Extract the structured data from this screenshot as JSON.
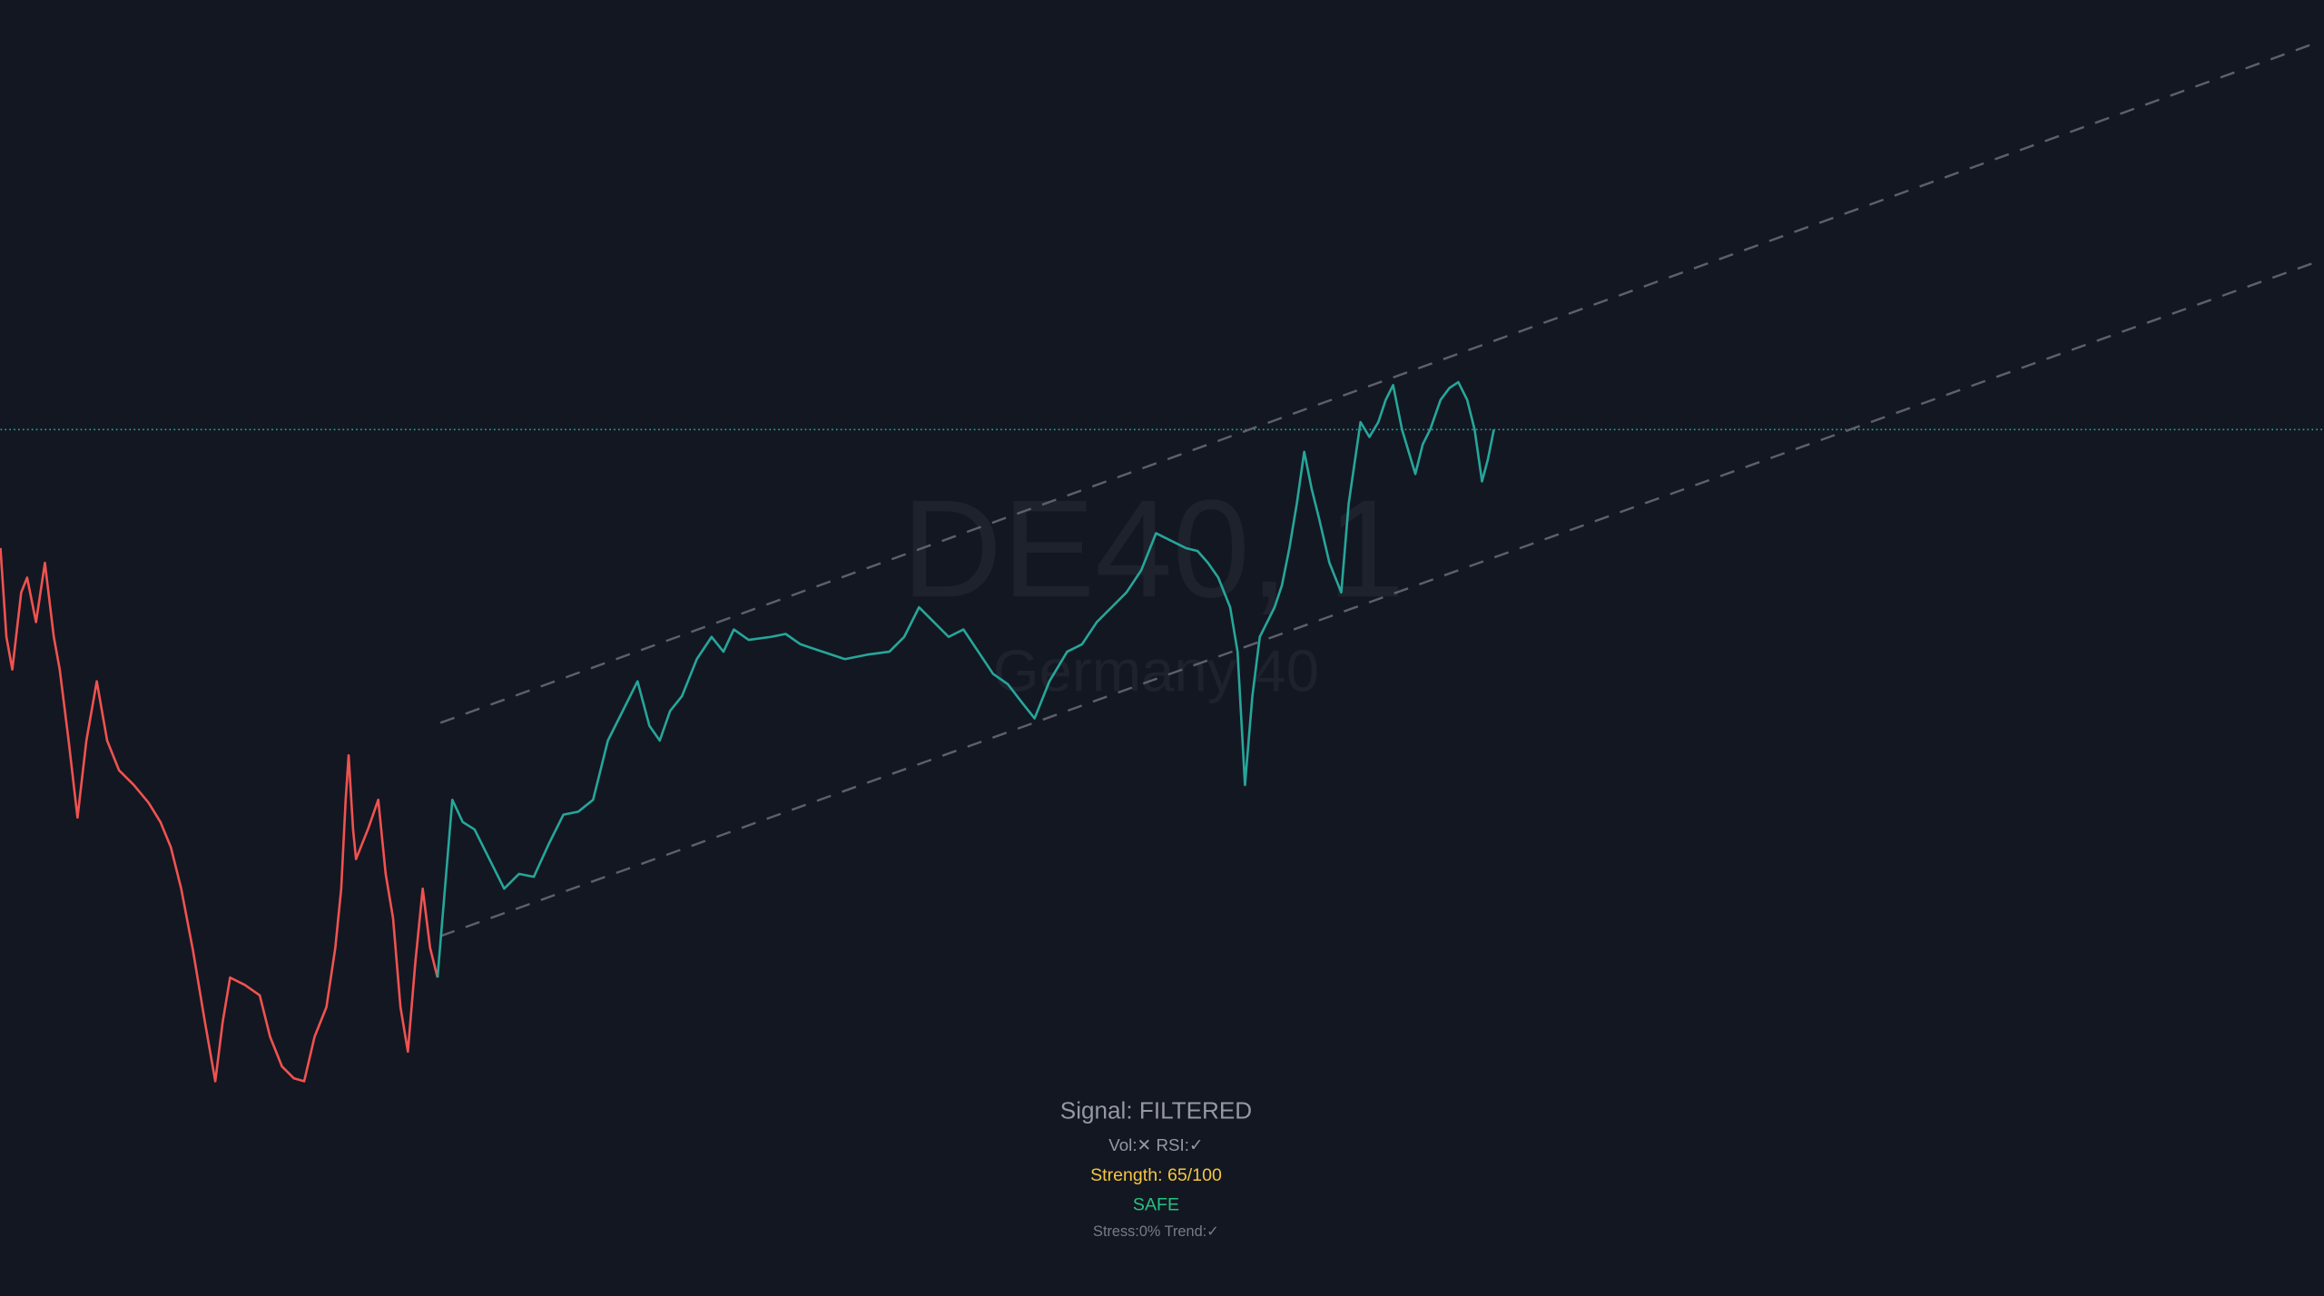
{
  "watermark": {
    "symbol": "DE40, 1",
    "name": "Germany 40"
  },
  "signal_panel": {
    "signal": "Signal: FILTERED",
    "filters": "Vol:✕ RSI:✓",
    "strength": "Strength: 65/100",
    "status": "SAFE",
    "stress": "Stress:0% Trend:✓"
  }
}
